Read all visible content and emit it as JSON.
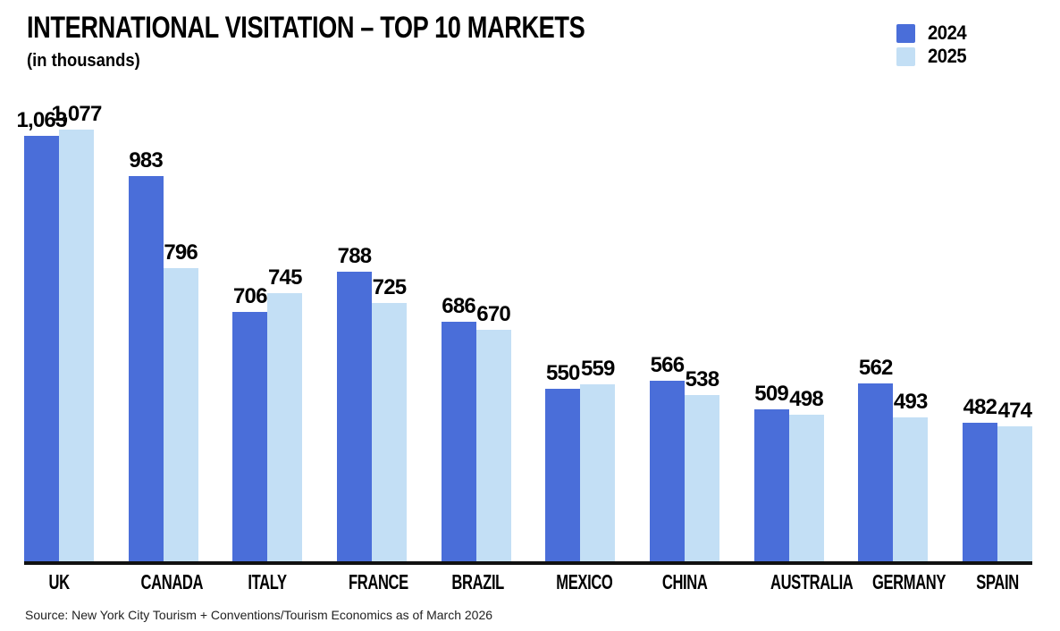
{
  "header": {
    "title": "INTERNATIONAL VISITATION – TOP 10 MARKETS",
    "subtitle": "(in thousands)"
  },
  "chart_data": {
    "type": "bar",
    "title": "INTERNATIONAL VISITATION – TOP 10 MARKETS",
    "subtitle": "(in thousands)",
    "unit": "thousands of visitors",
    "categories": [
      "UK",
      "CANADA",
      "ITALY",
      "FRANCE",
      "BRAZIL",
      "MEXICO",
      "CHINA",
      "AUSTRALIA",
      "GERMANY",
      "SPAIN"
    ],
    "series": [
      {
        "name": "2024",
        "color": "#4A6ED9",
        "values": [
          1063,
          983,
          706,
          788,
          686,
          550,
          566,
          509,
          562,
          482
        ],
        "labels": [
          "1,063",
          "983",
          "706",
          "788",
          "686",
          "550",
          "566",
          "509",
          "562",
          "482"
        ]
      },
      {
        "name": "2025",
        "color": "#C3DFF5",
        "values": [
          1077,
          796,
          745,
          725,
          670,
          559,
          538,
          498,
          493,
          474
        ],
        "labels": [
          "1,077",
          "796",
          "745",
          "725",
          "670",
          "559",
          "538",
          "498",
          "493",
          "474"
        ]
      }
    ],
    "ylim": [
      200,
      1100
    ],
    "grid": false,
    "legend_position": "top-right",
    "axis_color": "#111111",
    "value_labels_shown": true
  },
  "footer": {
    "source": "Source: New York City Tourism + Conventions/Tourism Economics as of March 2026"
  }
}
